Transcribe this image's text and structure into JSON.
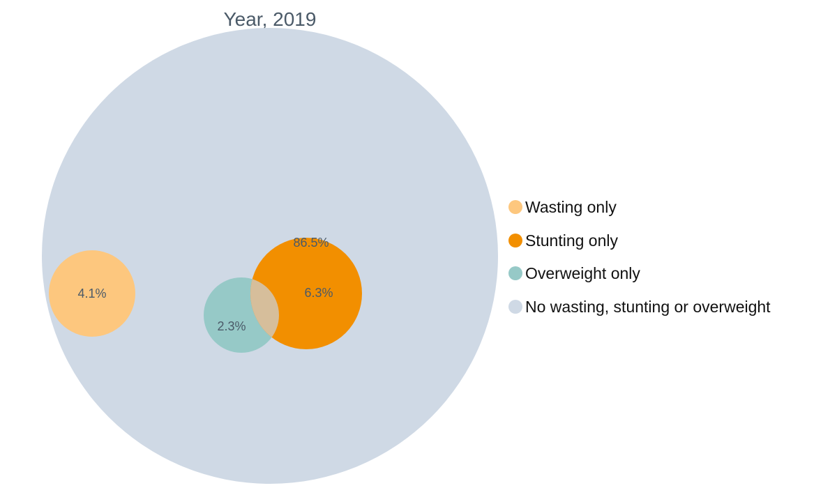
{
  "chart_data": {
    "type": "venn",
    "title": "Year, 2019",
    "unit": "%",
    "sets": [
      {
        "key": "background",
        "name": "No wasting, stunting or overweight",
        "value": 86.5,
        "label": "86.5%",
        "color": "#cfd9e5"
      },
      {
        "key": "wasting",
        "name": "Wasting only",
        "value": 4.1,
        "label": "4.1%",
        "color": "#fdc77e"
      },
      {
        "key": "stunting",
        "name": "Stunting only",
        "value": 6.3,
        "label": "6.3%",
        "color": "#f28f00"
      },
      {
        "key": "overweight",
        "name": "Overweight only",
        "value": 2.3,
        "label": "2.3%",
        "color": "#96c9c7"
      }
    ],
    "overlap": {
      "sets": [
        "stunting",
        "overweight"
      ],
      "color": "#d6be9b"
    },
    "legend": {
      "position": "right",
      "items": [
        {
          "label": "Wasting only",
          "color": "#fdc77e"
        },
        {
          "label": "Stunting only",
          "color": "#f28f00"
        },
        {
          "label": "Overweight only",
          "color": "#96c9c7"
        },
        {
          "label": "No wasting, stunting or overweight",
          "color": "#cfd9e5"
        }
      ]
    }
  }
}
